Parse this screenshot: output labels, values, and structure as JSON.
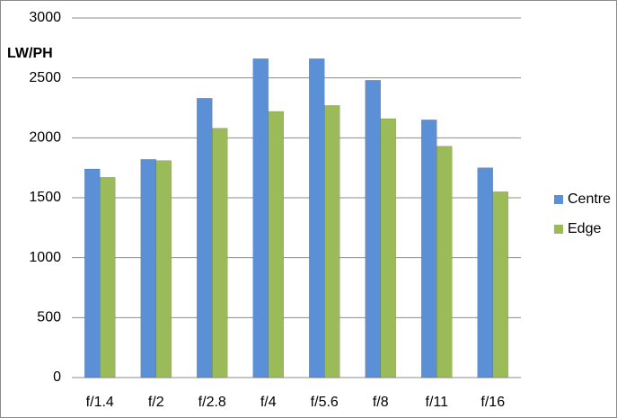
{
  "chart_data": {
    "type": "bar",
    "y_label": "LW/PH",
    "categories": [
      "f/1.4",
      "f/2",
      "f/2.8",
      "f/4",
      "f/5.6",
      "f/8",
      "f/11",
      "f/16"
    ],
    "series": [
      {
        "name": "Centre",
        "color": "#5b8fd6",
        "values": [
          1740,
          1820,
          2330,
          2660,
          2660,
          2480,
          2150,
          1750
        ]
      },
      {
        "name": "Edge",
        "color": "#9bbb59",
        "values": [
          1670,
          1810,
          2080,
          2220,
          2270,
          2160,
          1930,
          1550
        ]
      }
    ],
    "ylim": [
      0,
      3000
    ],
    "yticks": [
      0,
      500,
      1000,
      1500,
      2000,
      2500,
      3000
    ],
    "grid": true,
    "legend": "right"
  }
}
